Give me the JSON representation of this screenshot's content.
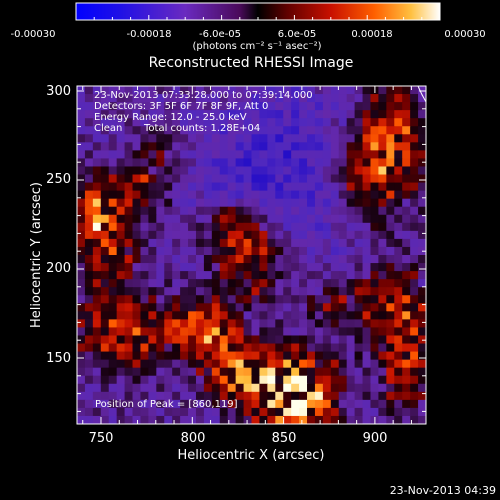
{
  "colorbar": {
    "tick_labels": [
      "-0.00030",
      "-0.00018",
      "-6.0e-05",
      "6.0e-05",
      "0.00018",
      "0.00030"
    ],
    "unit_label": "(photons cm⁻² s⁻¹ asec⁻²)",
    "range": [
      -0.0003,
      0.0003
    ]
  },
  "plot": {
    "title": "Reconstructed RHESSI Image",
    "xlabel": "Heliocentric X (arcsec)",
    "ylabel": "Heliocentric Y (arcsec)",
    "x_ticks": [
      "750",
      "800",
      "850",
      "900"
    ],
    "y_ticks": [
      "300",
      "250",
      "200",
      "150"
    ],
    "xlim": [
      736,
      928
    ],
    "ylim": [
      112,
      306
    ]
  },
  "annotations": {
    "time_range": "23-Nov-2013 07:33:28.000 to 07:39:14.000",
    "detectors": "Detectors: 3F 5F 6F 7F 8F 9F, Att 0",
    "energy_range": "Energy Range: 12.0 - 25.0 keV",
    "method": "Clean",
    "total_counts": "Total counts: 1.28E+04",
    "peak_position": "Position of Peak = [860,119]"
  },
  "footer": {
    "timestamp": "23-Nov-2013 04:39"
  },
  "colors": {
    "background": "#000000",
    "foreground": "#ffffff"
  }
}
